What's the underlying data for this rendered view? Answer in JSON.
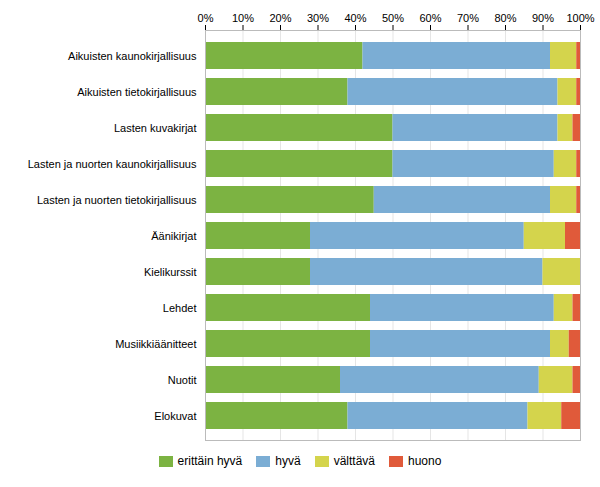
{
  "chart_data": {
    "type": "bar",
    "orientation": "horizontal",
    "stacked": true,
    "categories": [
      "Aikuisten kaunokirjallisuus",
      "Aikuisten tietokirjallisuus",
      "Lasten kuvakirjat",
      "Lasten ja nuorten kaunokirjallisuus",
      "Lasten ja nuorten tietokirjallisuus",
      "Äänikirjat",
      "Kielikurssit",
      "Lehdet",
      "Musiikkiäänitteet",
      "Nuotit",
      "Elokuvat"
    ],
    "series": [
      {
        "name": "erittäin hyvä",
        "color": "#7cb342",
        "values": [
          42,
          38,
          50,
          50,
          45,
          28,
          28,
          44,
          44,
          36,
          38
        ]
      },
      {
        "name": "hyvä",
        "color": "#7badd4",
        "values": [
          50,
          56,
          44,
          43,
          47,
          57,
          62,
          49,
          48,
          53,
          48
        ]
      },
      {
        "name": "välttävä",
        "color": "#d4d44c",
        "values": [
          7,
          5,
          4,
          6,
          7,
          11,
          10,
          5,
          5,
          9,
          9
        ]
      },
      {
        "name": "huono",
        "color": "#e05a3a",
        "values": [
          1,
          1,
          2,
          1,
          1,
          4,
          0,
          2,
          3,
          2,
          5
        ]
      }
    ],
    "xlim": [
      0,
      100
    ],
    "xticks": [
      {
        "value": 0,
        "label": "0%"
      },
      {
        "value": 10,
        "label": "10%"
      },
      {
        "value": 20,
        "label": "20%"
      },
      {
        "value": 30,
        "label": "30%"
      },
      {
        "value": 40,
        "label": "40%"
      },
      {
        "value": 50,
        "label": "50%"
      },
      {
        "value": 60,
        "label": "60%"
      },
      {
        "value": 70,
        "label": "70%"
      },
      {
        "value": 80,
        "label": "80%"
      },
      {
        "value": 90,
        "label": "90%"
      },
      {
        "value": 100,
        "label": "100%"
      }
    ],
    "grid": true,
    "legend": "bottom"
  }
}
